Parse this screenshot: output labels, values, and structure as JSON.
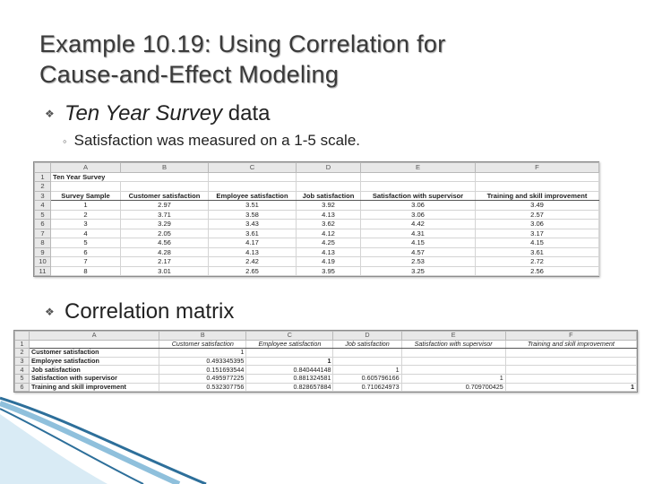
{
  "slide": {
    "title_line1": "Example 10.19: Using Correlation for",
    "title_line2": "Cause-and-Effect Modeling",
    "bullet1_italic": "Ten Year Survey",
    "bullet1_rest": " data",
    "sub_bullet": "Satisfaction was measured on a 1-5 scale.",
    "bullet2": "Correlation matrix"
  },
  "survey_sheet": {
    "col_letters": [
      "A",
      "B",
      "C",
      "D",
      "E",
      "F"
    ],
    "row_numbers": [
      "1",
      "2",
      "3",
      "4",
      "5",
      "6",
      "7",
      "8",
      "9",
      "10",
      "11"
    ],
    "sheet_title": "Ten Year Survey",
    "headers": [
      "Survey Sample",
      "Customer satisfaction",
      "Employee satisfaction",
      "Job satisfaction",
      "Satisfaction with supervisor",
      "Training and skill improvement"
    ],
    "rows": [
      [
        "1",
        "2.97",
        "3.51",
        "3.92",
        "3.06",
        "3.49"
      ],
      [
        "2",
        "3.71",
        "3.58",
        "4.13",
        "3.06",
        "2.57"
      ],
      [
        "3",
        "3.29",
        "3.43",
        "3.62",
        "4.42",
        "3.06"
      ],
      [
        "4",
        "2.05",
        "3.61",
        "4.12",
        "4.31",
        "3.17"
      ],
      [
        "5",
        "4.56",
        "4.17",
        "4.25",
        "4.15",
        "4.15"
      ],
      [
        "6",
        "4.28",
        "4.13",
        "4.13",
        "4.57",
        "3.61"
      ],
      [
        "7",
        "2.17",
        "2.42",
        "4.19",
        "2.53",
        "2.72"
      ],
      [
        "8",
        "3.01",
        "2.65",
        "3.95",
        "3.25",
        "2.56"
      ]
    ]
  },
  "corr_sheet": {
    "col_letters": [
      "A",
      "B",
      "C",
      "D",
      "E",
      "F"
    ],
    "row_numbers": [
      "1",
      "2",
      "3",
      "4",
      "5",
      "6"
    ],
    "headers": [
      "Customer satisfaction",
      "Employee satisfaction",
      "Job satisfaction",
      "Satisfaction with supervisor",
      "Training and skill improvement"
    ],
    "rows": [
      {
        "label": "Customer satisfaction",
        "values": [
          "1",
          "",
          "",
          "",
          ""
        ]
      },
      {
        "label": "Employee satisfaction",
        "values": [
          "0.493345395",
          "1",
          "",
          "",
          ""
        ]
      },
      {
        "label": "Job satisfaction",
        "values": [
          "0.151693544",
          "0.840444148",
          "1",
          "",
          ""
        ]
      },
      {
        "label": "Satisfaction with supervisor",
        "values": [
          "0.495977225",
          "0.881324581",
          "0.605796166",
          "1",
          ""
        ]
      },
      {
        "label": "Training and skill improvement",
        "values": [
          "0.532307756",
          "0.828657884",
          "0.710624973",
          "0.709700425",
          "1"
        ]
      }
    ]
  },
  "colors": {
    "accent_wave": "#2d6f9a",
    "accent_wave_light": "#8fc0dc"
  }
}
